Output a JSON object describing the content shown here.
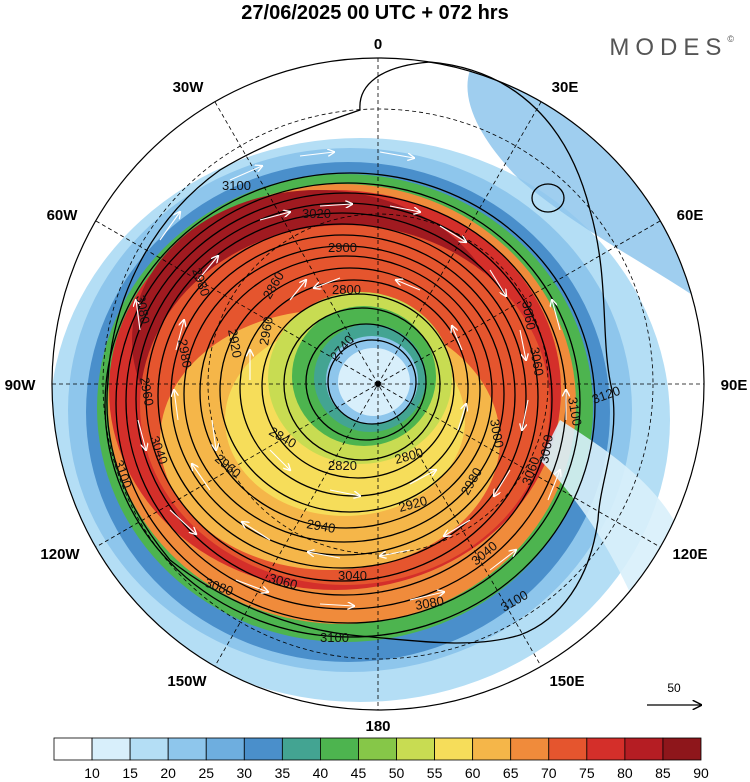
{
  "title": "27/06/2025  00 UTC  + 072 hrs",
  "logo": "MODES",
  "logo_mark": "©",
  "longitude_labels": [
    "0",
    "30E",
    "60E",
    "90E",
    "120E",
    "150E",
    "180",
    "150W",
    "120W",
    "90W",
    "60W",
    "30W"
  ],
  "contour_labels": [
    {
      "text": "3100"
    },
    {
      "text": "3100"
    },
    {
      "text": "3100"
    },
    {
      "text": "3100"
    },
    {
      "text": "3020"
    },
    {
      "text": "3060"
    },
    {
      "text": "2900"
    },
    {
      "text": "3080"
    },
    {
      "text": "2980"
    },
    {
      "text": "2860"
    },
    {
      "text": "2800"
    },
    {
      "text": "2740"
    },
    {
      "text": "2960"
    },
    {
      "text": "2920"
    },
    {
      "text": "2980"
    },
    {
      "text": "2960"
    },
    {
      "text": "2840"
    },
    {
      "text": "2820"
    },
    {
      "text": "2800"
    },
    {
      "text": "2960"
    },
    {
      "text": "2940"
    },
    {
      "text": "2920"
    },
    {
      "text": "2980"
    },
    {
      "text": "3040"
    },
    {
      "text": "3060"
    },
    {
      "text": "3040"
    },
    {
      "text": "3080"
    },
    {
      "text": "3080"
    },
    {
      "text": "3060"
    },
    {
      "text": "3100"
    },
    {
      "text": "3120"
    },
    {
      "text": "3060"
    },
    {
      "text": "3040"
    },
    {
      "text": "3000"
    },
    {
      "text": "3060"
    }
  ],
  "colorbar": {
    "ticks": [
      "10",
      "15",
      "20",
      "25",
      "30",
      "35",
      "40",
      "45",
      "50",
      "55",
      "60",
      "65",
      "70",
      "75",
      "80",
      "85",
      "90"
    ],
    "colors": [
      "#ffffff",
      "#d8effb",
      "#b4def5",
      "#8ec6ec",
      "#6eaedf",
      "#4a8fcb",
      "#43a492",
      "#4db44f",
      "#86c748",
      "#c8dc52",
      "#f6dd5a",
      "#f5b649",
      "#f08b3b",
      "#e5552e",
      "#d42f2a",
      "#b51d23",
      "#8e161b"
    ]
  },
  "reference_vector": "50"
}
